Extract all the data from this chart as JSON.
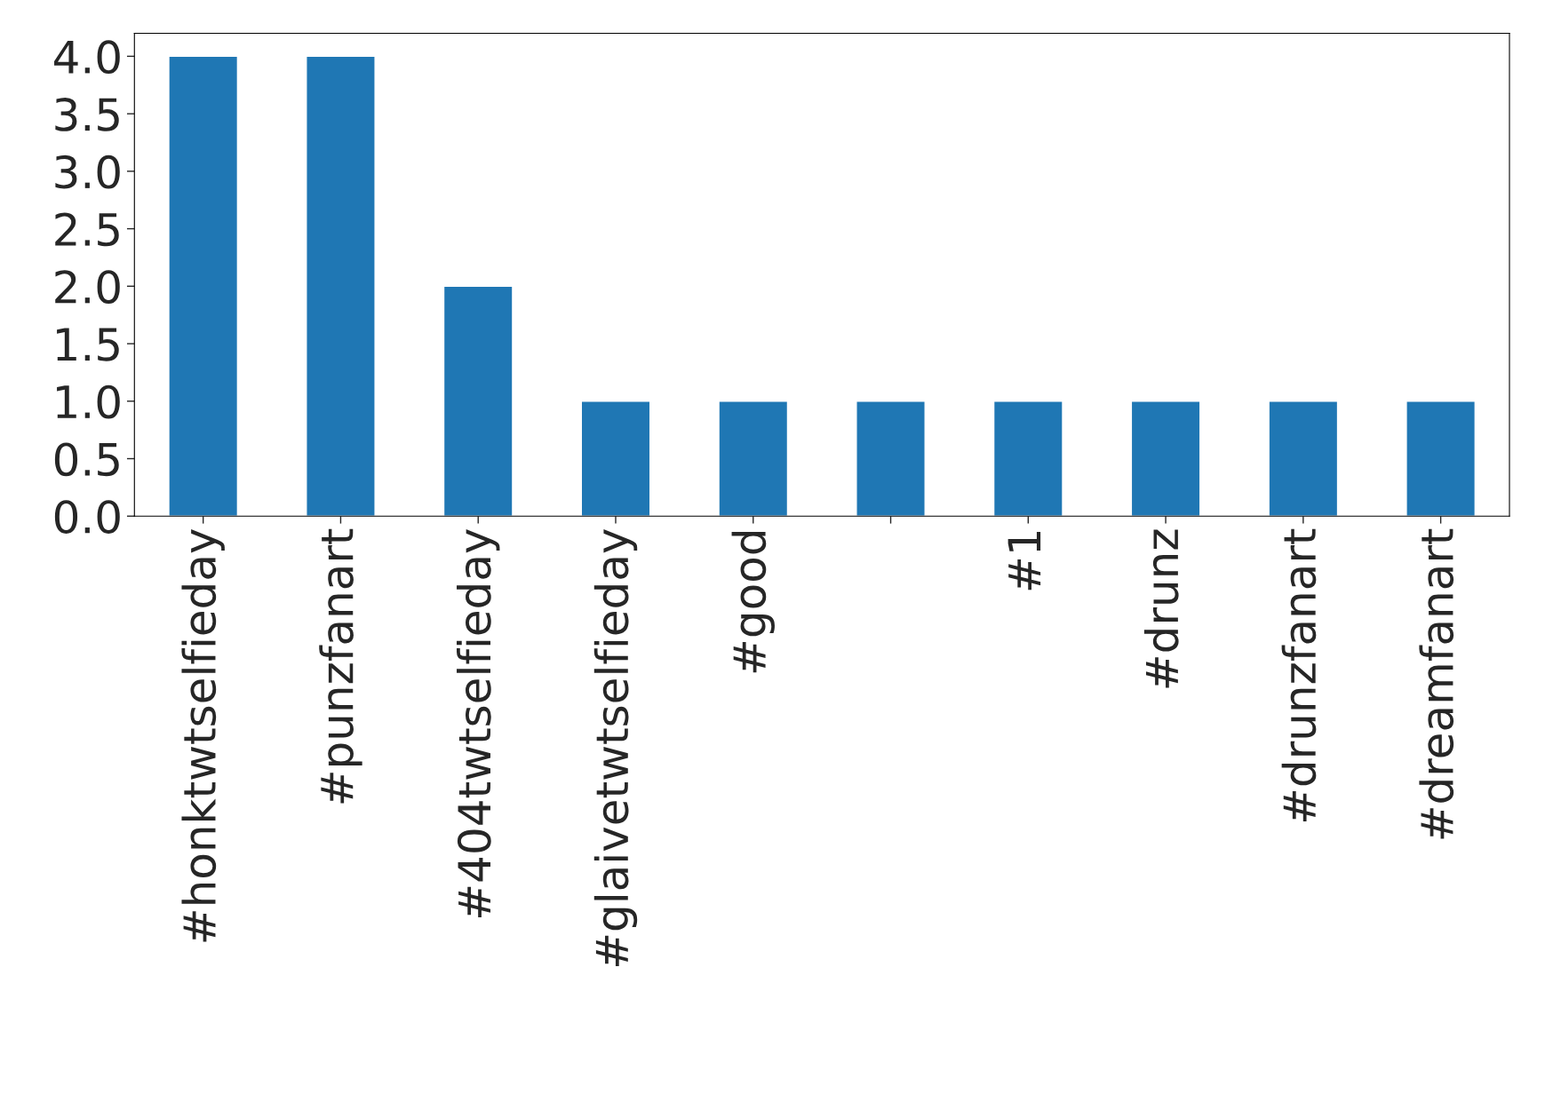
{
  "chart_data": {
    "type": "bar",
    "categories": [
      "#honktwtselfieday",
      "#punzfanart",
      "#404twtselfieday",
      "#glaivetwtselfieday",
      "#good",
      null,
      "#1",
      "#drunz",
      "#drunzfanart",
      "#dreamfanart"
    ],
    "values": [
      4,
      4,
      2,
      1,
      1,
      1,
      1,
      1,
      1,
      1
    ],
    "color": "#1f77b4",
    "ylim": [
      0,
      4.2
    ],
    "yticks": [
      {
        "value": 0,
        "label": "0.0"
      },
      {
        "value": 0.5,
        "label": "0.5"
      },
      {
        "value": 1,
        "label": "1.0"
      },
      {
        "value": 1.5,
        "label": "1.5"
      },
      {
        "value": 2,
        "label": "2.0"
      },
      {
        "value": 2.5,
        "label": "2.5"
      },
      {
        "value": 3,
        "label": "3.0"
      },
      {
        "value": 3.5,
        "label": "3.5"
      },
      {
        "value": 4,
        "label": "4.0"
      }
    ],
    "grid": false,
    "legend": false
  }
}
